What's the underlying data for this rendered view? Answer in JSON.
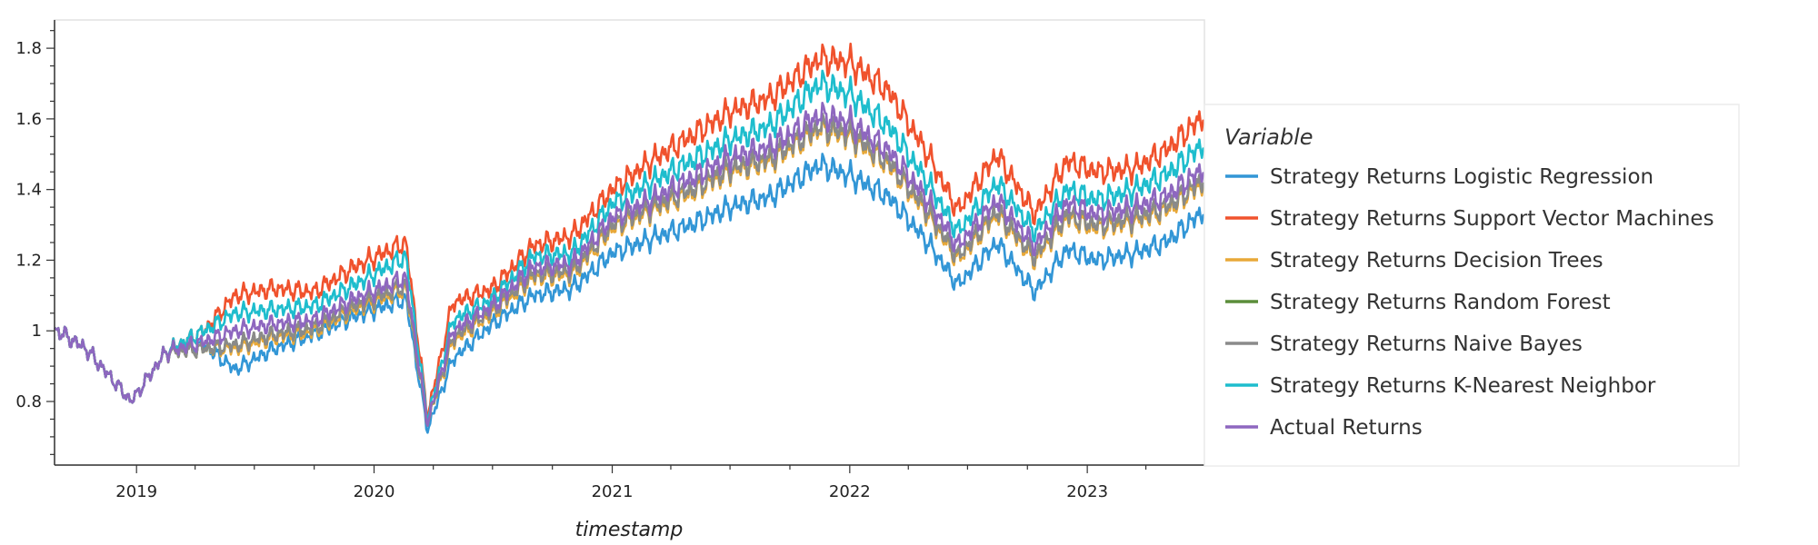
{
  "chart_data": {
    "type": "line",
    "xlabel": "timestamp",
    "ylabel": "",
    "xlim": [
      "2018-08-28",
      "2023-06-30"
    ],
    "ylim": [
      0.62,
      1.88
    ],
    "x_ticks": [
      "2019",
      "2020",
      "2021",
      "2022",
      "2023"
    ],
    "y_ticks": [
      "0.8",
      "1",
      "1.2",
      "1.4",
      "1.6",
      "1.8"
    ],
    "grid": false,
    "legend": {
      "title": "Variable",
      "placement": "right"
    },
    "x": [
      "2018-09-01",
      "2018-10-15",
      "2018-12-24",
      "2019-02-15",
      "2019-04-15",
      "2019-06-01",
      "2019-08-01",
      "2019-10-01",
      "2019-12-01",
      "2020-02-19",
      "2020-03-23",
      "2020-05-01",
      "2020-07-01",
      "2020-09-01",
      "2020-11-01",
      "2021-01-01",
      "2021-03-01",
      "2021-05-01",
      "2021-07-01",
      "2021-09-01",
      "2021-11-15",
      "2022-01-01",
      "2022-03-01",
      "2022-05-01",
      "2022-06-16",
      "2022-08-15",
      "2022-10-12",
      "2022-12-01",
      "2023-01-15",
      "2023-03-15",
      "2023-05-01",
      "2023-06-30"
    ],
    "series": [
      {
        "name": "Strategy Returns Logistic Regression",
        "color": "#3296d6",
        "values": [
          1.0,
          0.95,
          0.8,
          0.94,
          0.96,
          0.89,
          0.95,
          0.99,
          1.04,
          1.09,
          0.72,
          0.92,
          1.02,
          1.1,
          1.12,
          1.22,
          1.26,
          1.3,
          1.35,
          1.38,
          1.47,
          1.44,
          1.38,
          1.25,
          1.13,
          1.25,
          1.11,
          1.23,
          1.2,
          1.22,
          1.25,
          1.34
        ]
      },
      {
        "name": "Strategy Returns Support Vector Machines",
        "color": "#f0522d",
        "values": [
          1.0,
          0.95,
          0.8,
          0.94,
          1.0,
          1.1,
          1.12,
          1.11,
          1.18,
          1.25,
          0.76,
          1.08,
          1.12,
          1.24,
          1.27,
          1.4,
          1.48,
          1.55,
          1.62,
          1.66,
          1.77,
          1.76,
          1.68,
          1.5,
          1.34,
          1.5,
          1.33,
          1.48,
          1.45,
          1.46,
          1.51,
          1.61
        ]
      },
      {
        "name": "Strategy Returns Decision Trees",
        "color": "#e8a838",
        "values": [
          1.0,
          0.95,
          0.8,
          0.94,
          0.95,
          0.95,
          0.98,
          1.0,
          1.06,
          1.12,
          0.74,
          0.97,
          1.05,
          1.15,
          1.16,
          1.29,
          1.34,
          1.39,
          1.45,
          1.48,
          1.57,
          1.55,
          1.47,
          1.33,
          1.2,
          1.33,
          1.2,
          1.32,
          1.29,
          1.31,
          1.34,
          1.42
        ]
      },
      {
        "name": "Strategy Returns Random Forest",
        "color": "#5b8e3a",
        "values": [
          1.0,
          0.95,
          0.8,
          0.94,
          0.95,
          0.96,
          0.99,
          1.01,
          1.07,
          1.13,
          0.74,
          0.98,
          1.06,
          1.16,
          1.17,
          1.3,
          1.35,
          1.4,
          1.46,
          1.49,
          1.58,
          1.56,
          1.48,
          1.34,
          1.21,
          1.34,
          1.21,
          1.33,
          1.3,
          1.32,
          1.35,
          1.43
        ]
      },
      {
        "name": "Strategy Returns Naive Bayes",
        "color": "#8a8a8a",
        "values": [
          1.0,
          0.95,
          0.8,
          0.94,
          0.95,
          0.96,
          0.99,
          1.01,
          1.07,
          1.13,
          0.74,
          0.98,
          1.06,
          1.16,
          1.17,
          1.3,
          1.35,
          1.4,
          1.46,
          1.49,
          1.58,
          1.56,
          1.48,
          1.34,
          1.21,
          1.34,
          1.21,
          1.33,
          1.3,
          1.32,
          1.35,
          1.43
        ]
      },
      {
        "name": "Strategy Returns K-Nearest Neighbor",
        "color": "#1ebdcd",
        "values": [
          1.0,
          0.95,
          0.8,
          0.94,
          1.0,
          1.05,
          1.06,
          1.07,
          1.13,
          1.21,
          0.75,
          1.03,
          1.09,
          1.21,
          1.22,
          1.36,
          1.42,
          1.48,
          1.54,
          1.58,
          1.7,
          1.67,
          1.58,
          1.42,
          1.28,
          1.42,
          1.28,
          1.4,
          1.37,
          1.4,
          1.44,
          1.53
        ]
      },
      {
        "name": "Actual Returns",
        "color": "#8e67bf",
        "values": [
          1.0,
          0.95,
          0.8,
          0.94,
          0.97,
          1.0,
          1.02,
          1.03,
          1.09,
          1.15,
          0.74,
          1.0,
          1.07,
          1.18,
          1.19,
          1.32,
          1.37,
          1.43,
          1.49,
          1.52,
          1.61,
          1.59,
          1.51,
          1.37,
          1.24,
          1.37,
          1.24,
          1.36,
          1.33,
          1.35,
          1.38,
          1.46
        ]
      }
    ]
  }
}
